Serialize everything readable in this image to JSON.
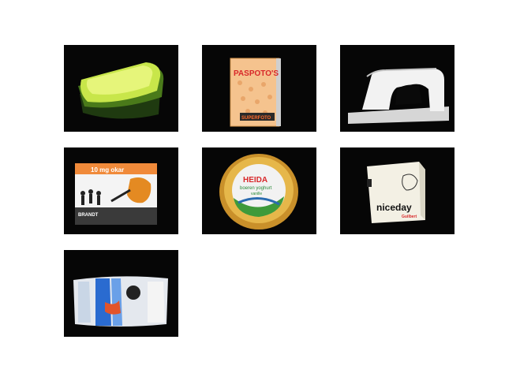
{
  "photos": [
    {
      "name": "green-lunch-box"
    },
    {
      "name": "paspotos-booklet",
      "title": "PASPOTO'S",
      "footer": "SUPERFOTO"
    },
    {
      "name": "hole-punch"
    },
    {
      "name": "sports-box",
      "banner": "10 mg okar",
      "brand": "BRANDT"
    },
    {
      "name": "heida-yogurt-tub",
      "brand": "HEIDA",
      "line1": "boeren yoghurt",
      "line2": "vanille"
    },
    {
      "name": "niceday-box",
      "brand": "niceday",
      "sub": "Guilbert"
    },
    {
      "name": "wrapped-roll"
    }
  ]
}
